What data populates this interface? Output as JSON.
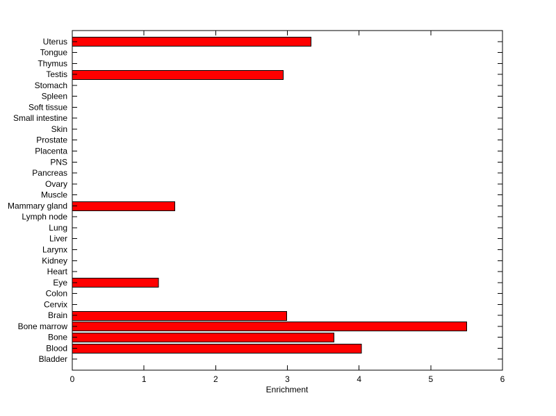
{
  "figure": {
    "background_color": "#ffffff",
    "axis_color": "#000000",
    "text_color": "#000000"
  },
  "chart_data": {
    "type": "bar",
    "orientation": "horizontal",
    "title": "",
    "xlabel": "Enrichment",
    "ylabel": "",
    "xlim": [
      0,
      6
    ],
    "xticks": [
      0,
      1,
      2,
      3,
      4,
      5,
      6
    ],
    "grid": false,
    "bar_color": "#ff0000",
    "bar_edge_color": "#000000",
    "categories_top_to_bottom": [
      "Uterus",
      "Tongue",
      "Thymus",
      "Testis",
      "Stomach",
      "Spleen",
      "Soft tissue",
      "Small intestine",
      "Skin",
      "Prostate",
      "Placenta",
      "PNS",
      "Pancreas",
      "Ovary",
      "Muscle",
      "Mammary gland",
      "Lymph node",
      "Lung",
      "Liver",
      "Larynx",
      "Kidney",
      "Heart",
      "Eye",
      "Colon",
      "Cervix",
      "Brain",
      "Bone marrow",
      "Bone",
      "Blood",
      "Bladder"
    ],
    "values": [
      3.33,
      0,
      0,
      2.94,
      0,
      0,
      0,
      0,
      0,
      0,
      0,
      0,
      0,
      0,
      0,
      1.43,
      0,
      0,
      0,
      0,
      0,
      0,
      1.2,
      0,
      0,
      2.99,
      5.5,
      3.65,
      4.03,
      0
    ]
  }
}
